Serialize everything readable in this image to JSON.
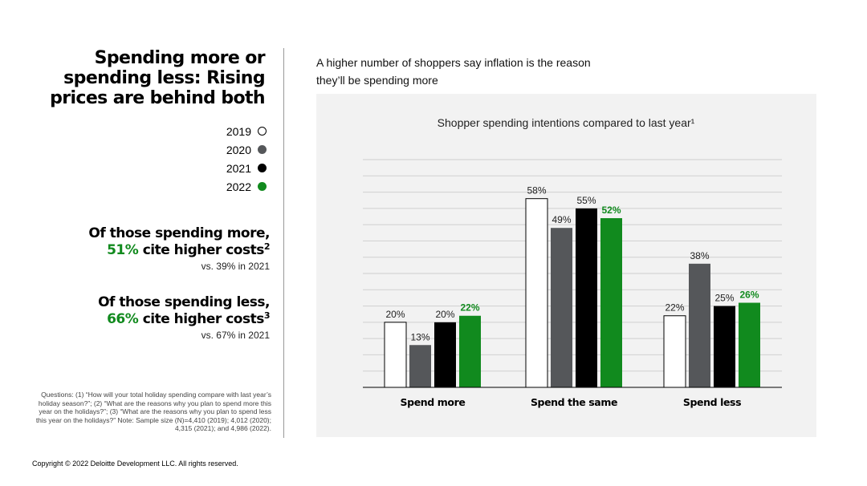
{
  "left": {
    "title_lines": [
      "Spending more or",
      "spending less: Rising",
      "prices are behind both"
    ],
    "legend": [
      {
        "label": "2019",
        "color": "#ffffff",
        "outline": true
      },
      {
        "label": "2020",
        "color": "#55575a"
      },
      {
        "label": "2021",
        "color": "#000000"
      },
      {
        "label": "2022",
        "color": "#118a1e"
      }
    ],
    "callout_more": {
      "line1": "Of those spending more,",
      "pct": "51%",
      "rest": " cite higher costs",
      "sup": "2",
      "vs": "vs. 39% in 2021"
    },
    "callout_less": {
      "line1": "Of those spending less,",
      "pct": "66%",
      "rest": " cite higher costs",
      "sup": "3",
      "vs": "vs. 67% in 2021"
    },
    "footnote": "Questions: (1) “How will your total holiday spending compare with last year’s holiday season?”; (2) “What are the reasons why you plan to spend more this year on the holidays?”; (3) “What are the reasons why you plan to spend less this year on the holidays?” Note: Sample size (N)=4,410 (2019); 4,012 (2020); 4,315 (2021); and 4,986 (2022)."
  },
  "subtitle": "A higher number of shoppers say inflation is the reason they’ll be spending more",
  "copyright": "Copyright © 2022 Deloitte Development LLC. All rights reserved.",
  "colors": {
    "s2019": "#ffffff",
    "s2020": "#55575a",
    "s2021": "#000000",
    "s2022": "#118a1e",
    "panel": "#f2f2f2",
    "grid": "#cfcfcf"
  },
  "chart_data": {
    "type": "bar",
    "title": "Shopper spending intentions compared to last year¹",
    "categories": [
      "Spend more",
      "Spend the same",
      "Spend less"
    ],
    "series": [
      {
        "name": "2019",
        "values": [
          20,
          58,
          22
        ],
        "labels": [
          "20%",
          "58%",
          "22%"
        ]
      },
      {
        "name": "2020",
        "values": [
          13,
          49,
          38
        ],
        "labels": [
          "13%",
          "49%",
          "38%"
        ]
      },
      {
        "name": "2021",
        "values": [
          20,
          55,
          25
        ],
        "labels": [
          "20%",
          "55%",
          "25%"
        ]
      },
      {
        "name": "2022",
        "values": [
          22,
          52,
          26
        ],
        "labels": [
          "22%",
          "52%",
          "26%"
        ]
      }
    ],
    "ylim": [
      0,
      70
    ],
    "grid": true,
    "legend": "left"
  }
}
